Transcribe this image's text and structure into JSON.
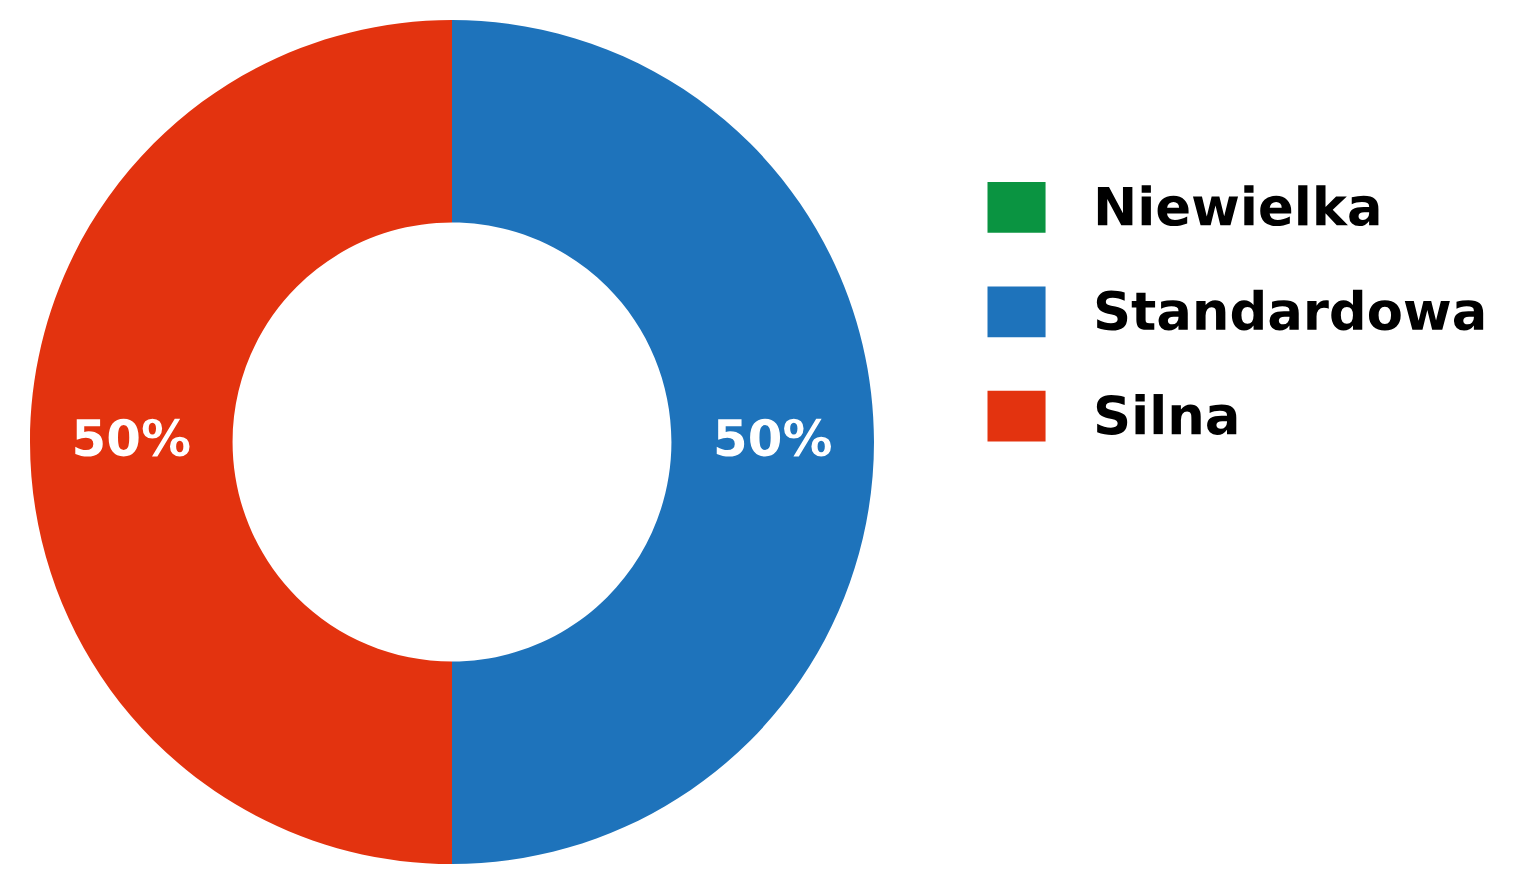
{
  "chart_data": {
    "type": "donut",
    "categories": [
      "Niewielka",
      "Standardowa",
      "Silna"
    ],
    "values": [
      0,
      50,
      50
    ],
    "colors": [
      "#0a9441",
      "#1e73bb",
      "#e3330f"
    ],
    "value_labels": [
      null,
      "50%",
      "50%"
    ],
    "legend": "right"
  }
}
